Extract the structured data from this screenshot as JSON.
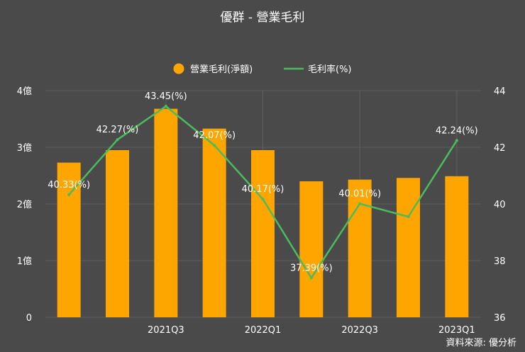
{
  "chart_data": {
    "type": "bar",
    "title": "優群 - 營業毛利",
    "source": "資料來源: 優分析",
    "categories": [
      "",
      "",
      "2021Q3",
      "",
      "2022Q1",
      "",
      "2022Q3",
      "",
      "2023Q1"
    ],
    "series": [
      {
        "name": "營業毛利(淨額)",
        "type": "bar",
        "axis": "left",
        "color": "#FFA500",
        "values": [
          2.73,
          2.95,
          3.68,
          3.33,
          2.95,
          2.4,
          2.43,
          2.46,
          2.49
        ]
      },
      {
        "name": "毛利率(%)",
        "type": "line",
        "axis": "right",
        "color": "#4CBB5E",
        "values": [
          40.33,
          42.27,
          43.45,
          42.07,
          40.17,
          37.39,
          40.01,
          39.55,
          42.24
        ]
      }
    ],
    "data_labels": [
      "40.33(%)",
      "42.27(%)",
      "43.45(%)",
      "42.07(%)",
      "40.17(%)",
      "37.39(%)",
      "40.01(%)",
      "",
      "42.24(%)"
    ],
    "y_left": {
      "min": 0,
      "max": 4,
      "ticks": [
        0,
        1,
        2,
        3,
        4
      ],
      "tick_labels": [
        "0",
        "1億",
        "2億",
        "3億",
        "4億"
      ]
    },
    "y_right": {
      "min": 36,
      "max": 44,
      "ticks": [
        36,
        38,
        40,
        42,
        44
      ],
      "tick_labels": [
        "36",
        "38",
        "40",
        "42",
        "44"
      ]
    },
    "legend_position": "top-center",
    "grid": true,
    "colors": {
      "background": "#4a4a4a",
      "grid": "#5f5f5f",
      "text": "#ffffff"
    }
  }
}
